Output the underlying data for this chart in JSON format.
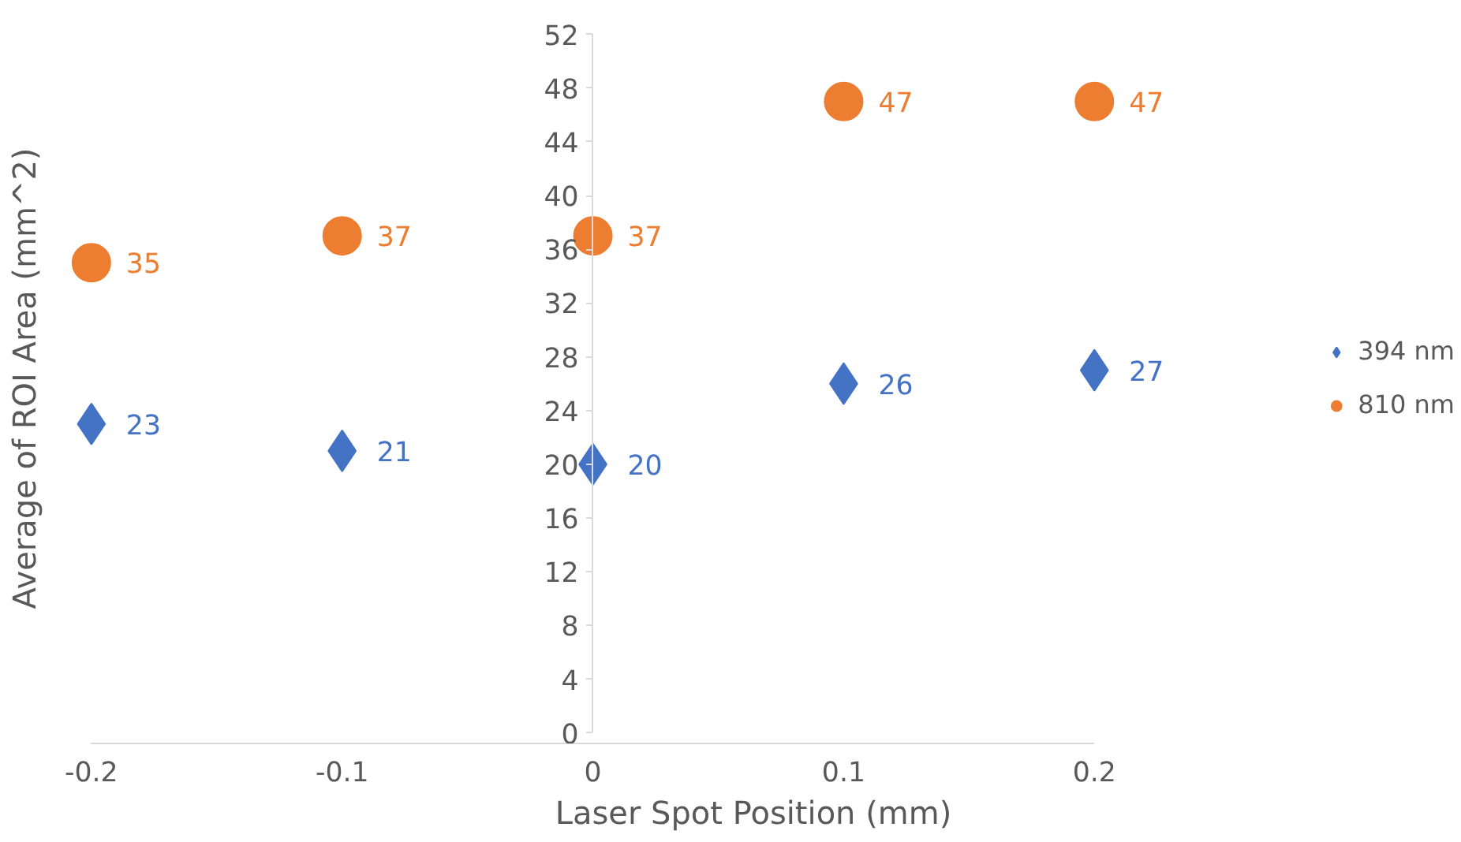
{
  "chart_data": {
    "type": "scatter",
    "xlabel": "Laser Spot Position (mm)",
    "ylabel": "Average of ROI Area (mm^2)",
    "x": [
      -0.2,
      -0.1,
      0,
      0.1,
      0.2
    ],
    "series": [
      {
        "name": "394 nm",
        "color": "#4472c4",
        "marker": "diamond",
        "values": [
          23,
          21,
          20,
          26,
          27
        ]
      },
      {
        "name": "810 nm",
        "color": "#ed7d31",
        "marker": "circle",
        "values": [
          35,
          37,
          37,
          47,
          47
        ]
      }
    ],
    "xlim": [
      -0.2,
      0.2
    ],
    "xticks": [
      -0.2,
      -0.1,
      0,
      0.1,
      0.2
    ],
    "ylim": [
      0,
      52
    ],
    "yticks": [
      0,
      4,
      8,
      12,
      16,
      20,
      24,
      28,
      32,
      36,
      40,
      44,
      48,
      52
    ],
    "data_labels": true,
    "legend": "right",
    "grid": false
  }
}
